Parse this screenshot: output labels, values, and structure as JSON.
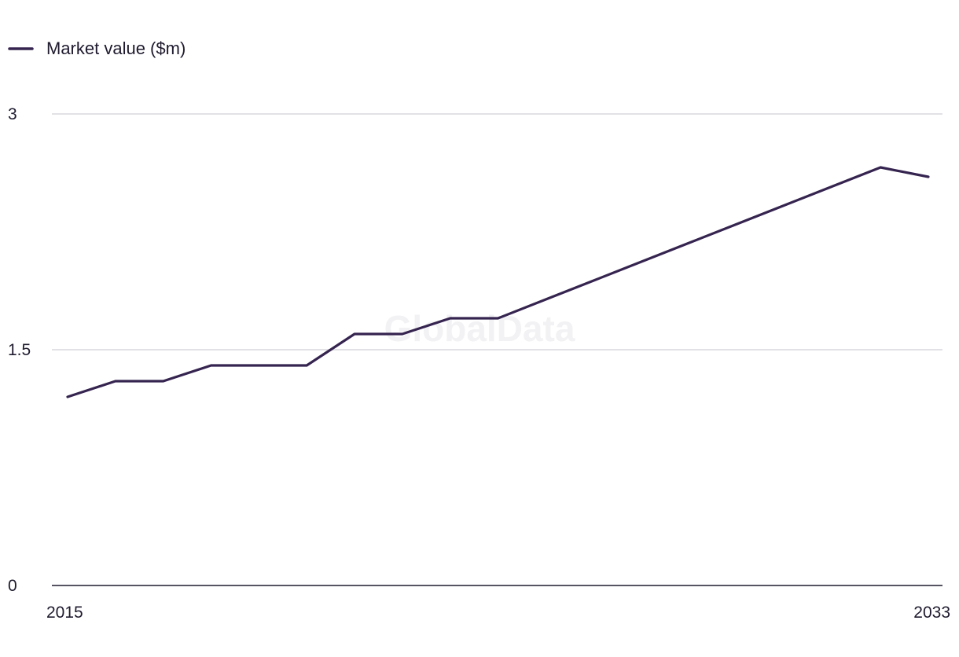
{
  "chart_data": {
    "type": "line",
    "title": "",
    "xlabel": "",
    "ylabel": "",
    "x": [
      2015,
      2016,
      2017,
      2018,
      2019,
      2020,
      2021,
      2022,
      2023,
      2024,
      2025,
      2026,
      2027,
      2028,
      2029,
      2030,
      2031,
      2032,
      2033
    ],
    "x_tick_labels": [
      "2015",
      "2033"
    ],
    "y_ticks": [
      0,
      1.5,
      3
    ],
    "y_tick_labels": [
      "0",
      "1.5",
      "3"
    ],
    "ylim": [
      0,
      3
    ],
    "grid": true,
    "legend_position": "top-left",
    "series": [
      {
        "name": "Market value ($m)",
        "color": "#35244f",
        "values": [
          1.2,
          1.3,
          1.3,
          1.4,
          1.4,
          1.4,
          1.6,
          1.6,
          1.7,
          1.7,
          1.82,
          1.94,
          2.06,
          2.18,
          2.3,
          2.42,
          2.54,
          2.66,
          2.6
        ]
      }
    ],
    "watermark": "GlobalData"
  }
}
